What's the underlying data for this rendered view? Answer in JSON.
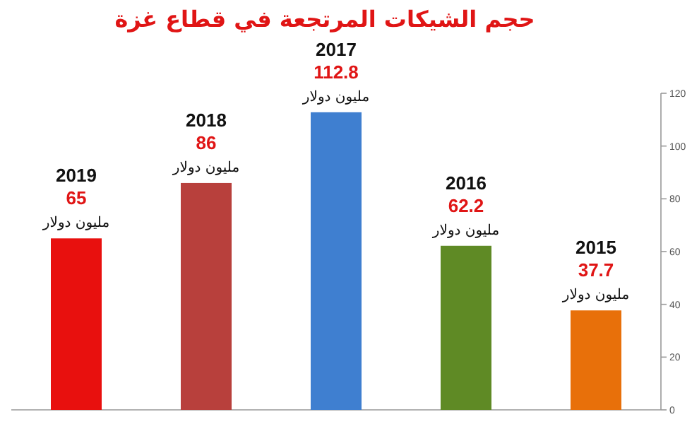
{
  "chart_data": {
    "type": "bar",
    "title": "حجم الشيكات المرتجعة في قطاع غزة",
    "categories": [
      "2019",
      "2018",
      "2017",
      "2016",
      "2015"
    ],
    "values": [
      65,
      86,
      112.8,
      62.2,
      37.7
    ],
    "value_labels": [
      "65",
      "86",
      "112.8",
      "62.2",
      "37.7"
    ],
    "colors": [
      "#e8100e",
      "#b8403c",
      "#3f7fd0",
      "#5f8a25",
      "#e8700a"
    ],
    "ylim": [
      0,
      120
    ],
    "yticks": [
      0,
      20,
      40,
      60,
      80,
      100,
      120
    ],
    "annotations": [
      {
        "text": "مليون دولار",
        "x": "2019",
        "y": 65
      },
      {
        "text": "مليون دولار",
        "x": "2018",
        "y": 86
      },
      {
        "text": "مليون دولار",
        "x": "2017",
        "y": 112.8
      },
      {
        "text": "مليون دولار",
        "x": "2016",
        "y": 62.2
      },
      {
        "text": "مليون دولار",
        "x": "2015",
        "y": 37.7
      }
    ]
  }
}
